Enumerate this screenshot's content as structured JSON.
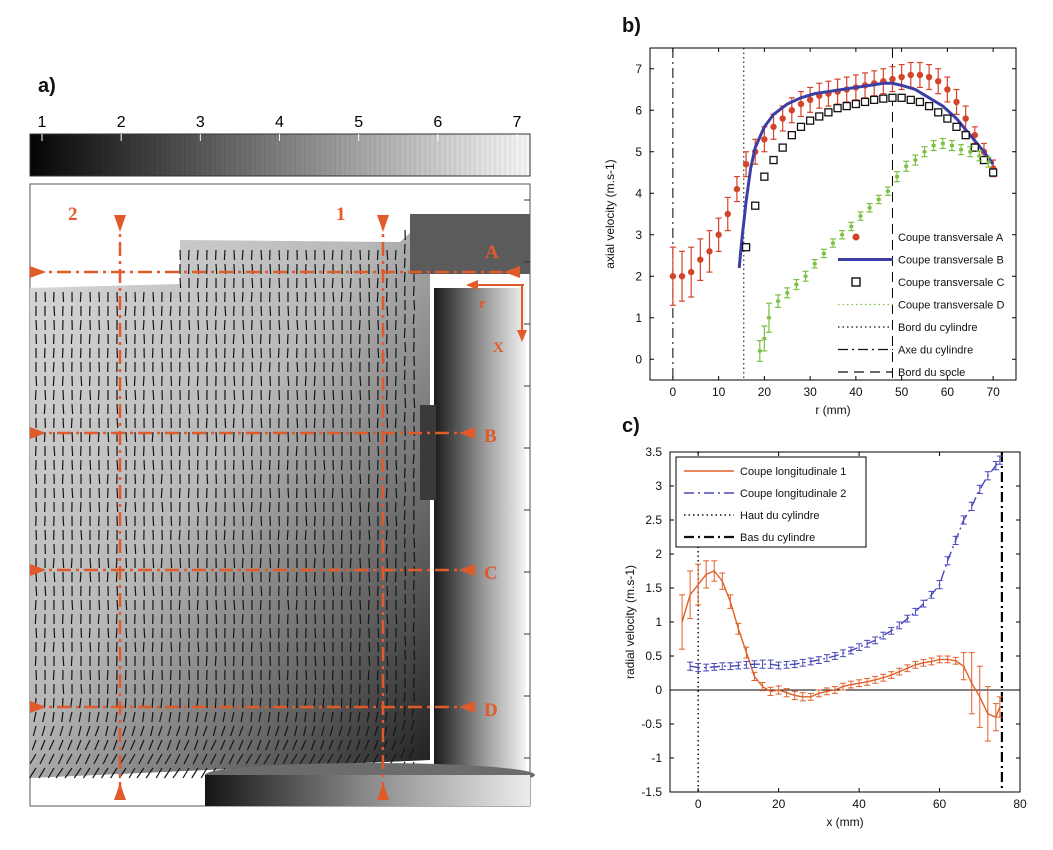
{
  "colors": {
    "accent": "#e05a2a",
    "seriesA": "#d4442a",
    "seriesB": "#3c3ea6",
    "seriesC": "#111111",
    "seriesD": "#7cc042",
    "long1": "#e0602a",
    "long2": "#4848b8"
  },
  "panel_a": {
    "label": "a)",
    "colorbar_ticks": [
      "1",
      "2",
      "3",
      "4",
      "5",
      "6",
      "7"
    ],
    "section_labels": [
      "A",
      "B",
      "C",
      "D"
    ],
    "longitudinal_labels": [
      "2",
      "1"
    ],
    "axis_labels": {
      "r": "r",
      "x": "X"
    }
  },
  "chart_data": [
    {
      "id": "b",
      "panel_label": "b)",
      "type": "scatter",
      "xlabel": "r (mm)",
      "ylabel": "axial velocity (m.s-1)",
      "xlim": [
        -5,
        75
      ],
      "ylim": [
        -0.5,
        7.5
      ],
      "xticks": [
        0,
        10,
        20,
        30,
        40,
        50,
        60,
        70
      ],
      "yticks": [
        0,
        1,
        2,
        3,
        4,
        5,
        6,
        7
      ],
      "legend_position": "bottom-right",
      "vlines": [
        {
          "x": 0,
          "style": "dashdot",
          "name": "Axe du cylindre"
        },
        {
          "x": 15.5,
          "style": "dotted",
          "name": "Bord du cylindre"
        },
        {
          "x": 48,
          "style": "dashed",
          "name": "Bord du socle"
        }
      ],
      "series": [
        {
          "name": "Coupe transversale A",
          "marker": "dot",
          "color": "seriesA",
          "x": [
            0,
            2,
            4,
            6,
            8,
            10,
            12,
            14,
            16,
            18,
            20,
            22,
            24,
            26,
            28,
            30,
            32,
            34,
            36,
            38,
            40,
            42,
            44,
            46,
            48,
            50,
            52,
            54,
            56,
            58,
            60,
            62,
            64,
            66,
            68,
            70
          ],
          "y": [
            2.0,
            2.0,
            2.1,
            2.4,
            2.6,
            3.0,
            3.5,
            4.1,
            4.7,
            5.0,
            5.3,
            5.6,
            5.8,
            6.0,
            6.15,
            6.25,
            6.35,
            6.4,
            6.45,
            6.5,
            6.55,
            6.6,
            6.65,
            6.7,
            6.75,
            6.8,
            6.85,
            6.85,
            6.8,
            6.7,
            6.5,
            6.2,
            5.8,
            5.4,
            5.0,
            4.6
          ],
          "err": [
            0.7,
            0.6,
            0.6,
            0.5,
            0.5,
            0.4,
            0.4,
            0.3,
            0.3,
            0.3,
            0.3,
            0.3,
            0.3,
            0.3,
            0.3,
            0.3,
            0.3,
            0.3,
            0.3,
            0.3,
            0.3,
            0.3,
            0.3,
            0.3,
            0.3,
            0.3,
            0.3,
            0.3,
            0.3,
            0.3,
            0.3,
            0.3,
            0.3,
            0.2,
            0.2,
            0.2
          ]
        },
        {
          "name": "Coupe transversale B",
          "marker": "line",
          "color": "seriesB",
          "x": [
            14.5,
            15,
            16,
            17,
            18,
            20,
            22,
            25,
            28,
            31,
            34,
            37,
            40,
            43,
            46,
            48,
            50,
            53,
            56,
            59,
            62,
            65,
            68,
            70
          ],
          "y": [
            2.2,
            2.8,
            3.8,
            4.6,
            5.1,
            5.6,
            5.9,
            6.15,
            6.3,
            6.4,
            6.45,
            6.5,
            6.55,
            6.6,
            6.65,
            6.65,
            6.6,
            6.5,
            6.3,
            6.1,
            5.8,
            5.4,
            5.0,
            4.7
          ]
        },
        {
          "name": "Coupe transversale C",
          "marker": "square",
          "color": "seriesC",
          "x": [
            16,
            18,
            20,
            22,
            24,
            26,
            28,
            30,
            32,
            34,
            36,
            38,
            40,
            42,
            44,
            46,
            48,
            50,
            52,
            54,
            56,
            58,
            60,
            62,
            64,
            66,
            68,
            70
          ],
          "y": [
            2.7,
            3.7,
            4.4,
            4.8,
            5.1,
            5.4,
            5.6,
            5.75,
            5.85,
            5.95,
            6.05,
            6.1,
            6.15,
            6.2,
            6.25,
            6.28,
            6.3,
            6.3,
            6.25,
            6.2,
            6.1,
            5.95,
            5.8,
            5.6,
            5.4,
            5.1,
            4.8,
            4.5
          ]
        },
        {
          "name": "Coupe transversale D",
          "marker": "errorbar",
          "color": "seriesD",
          "x": [
            19,
            20,
            21,
            23,
            25,
            27,
            29,
            31,
            33,
            35,
            37,
            39,
            41,
            43,
            45,
            47,
            49,
            51,
            53,
            55,
            57,
            59,
            61,
            63,
            65,
            67,
            69
          ],
          "y": [
            0.2,
            0.5,
            1.0,
            1.4,
            1.6,
            1.8,
            2.0,
            2.3,
            2.55,
            2.8,
            3.0,
            3.2,
            3.45,
            3.65,
            3.85,
            4.05,
            4.4,
            4.65,
            4.8,
            5.0,
            5.15,
            5.2,
            5.15,
            5.05,
            5.0,
            4.9,
            4.75
          ],
          "err": [
            0.25,
            0.3,
            0.35,
            0.15,
            0.12,
            0.12,
            0.12,
            0.1,
            0.1,
            0.1,
            0.1,
            0.1,
            0.1,
            0.1,
            0.1,
            0.1,
            0.12,
            0.12,
            0.12,
            0.12,
            0.12,
            0.12,
            0.12,
            0.12,
            0.12,
            0.12,
            0.12
          ]
        }
      ],
      "legend": [
        {
          "label": "Coupe transversale A",
          "kind": "dot",
          "color": "seriesA"
        },
        {
          "label": "Coupe transversale B",
          "kind": "line",
          "color": "seriesB"
        },
        {
          "label": "Coupe transversale C",
          "kind": "square",
          "color": "seriesC"
        },
        {
          "label": "Coupe transversale D",
          "kind": "dotted",
          "color": "seriesD"
        },
        {
          "label": "Bord du cylindre",
          "kind": "dotted",
          "color": "seriesC"
        },
        {
          "label": "Axe du cylindre",
          "kind": "dashdot",
          "color": "seriesC"
        },
        {
          "label": "Bord du socle",
          "kind": "dashed",
          "color": "seriesC"
        }
      ]
    },
    {
      "id": "c",
      "panel_label": "c)",
      "type": "line",
      "xlabel": "x (mm)",
      "ylabel": "radial velocity (m.s-1)",
      "xlim": [
        -7,
        80
      ],
      "ylim": [
        -1.5,
        3.5
      ],
      "xticks": [
        0,
        20,
        40,
        60,
        80
      ],
      "yticks": [
        -1.5,
        -1,
        -0.5,
        0,
        0.5,
        1,
        1.5,
        2,
        2.5,
        3,
        3.5
      ],
      "ytick_labels": [
        "-1.5",
        "-1",
        "-0.5",
        "0",
        "0.5",
        "1",
        "1.5",
        "2",
        "2.5",
        "3",
        "3.5"
      ],
      "legend_position": "top-left",
      "hline": 0,
      "vlines": [
        {
          "x": 0,
          "style": "dotted",
          "name": "Haut du cylindre"
        },
        {
          "x": 75.5,
          "style": "dashdot-bold",
          "name": "Bas du cylindre"
        }
      ],
      "series": [
        {
          "name": "Coupe longitudinale 1",
          "color": "long1",
          "style": "solid",
          "x": [
            -4,
            -2,
            0,
            2,
            4,
            6,
            8,
            10,
            12,
            14,
            16,
            18,
            20,
            22,
            24,
            26,
            28,
            30,
            32,
            34,
            36,
            38,
            40,
            42,
            44,
            46,
            48,
            50,
            52,
            54,
            56,
            58,
            60,
            62,
            64,
            66,
            68,
            70,
            72,
            74,
            75
          ],
          "y": [
            1.0,
            1.4,
            1.55,
            1.7,
            1.75,
            1.6,
            1.3,
            0.9,
            0.55,
            0.2,
            0.05,
            -0.02,
            0.0,
            -0.04,
            -0.08,
            -0.1,
            -0.1,
            -0.05,
            -0.02,
            0.0,
            0.05,
            0.08,
            0.1,
            0.12,
            0.15,
            0.18,
            0.22,
            0.27,
            0.32,
            0.37,
            0.4,
            0.42,
            0.45,
            0.45,
            0.43,
            0.35,
            0.1,
            -0.1,
            -0.35,
            -0.4,
            -0.25
          ],
          "err": [
            0.4,
            0.35,
            0.3,
            0.2,
            0.15,
            0.12,
            0.1,
            0.08,
            0.08,
            0.06,
            0.06,
            0.06,
            0.06,
            0.06,
            0.06,
            0.06,
            0.05,
            0.05,
            0.05,
            0.05,
            0.05,
            0.05,
            0.05,
            0.05,
            0.05,
            0.05,
            0.05,
            0.05,
            0.05,
            0.05,
            0.05,
            0.05,
            0.05,
            0.05,
            0.05,
            0.2,
            0.45,
            0.45,
            0.4,
            0.2,
            0.15
          ]
        },
        {
          "name": "Coupe longitudinale 2",
          "color": "long2",
          "style": "dashdot",
          "x": [
            -2,
            0,
            2,
            4,
            6,
            8,
            10,
            12,
            14,
            16,
            18,
            20,
            22,
            24,
            26,
            28,
            30,
            32,
            34,
            36,
            38,
            40,
            42,
            44,
            46,
            48,
            50,
            52,
            54,
            56,
            58,
            60,
            62,
            64,
            66,
            68,
            70,
            72,
            74,
            75
          ],
          "y": [
            0.35,
            0.33,
            0.33,
            0.34,
            0.35,
            0.35,
            0.36,
            0.37,
            0.38,
            0.38,
            0.38,
            0.36,
            0.37,
            0.38,
            0.4,
            0.42,
            0.44,
            0.47,
            0.5,
            0.54,
            0.58,
            0.63,
            0.68,
            0.73,
            0.8,
            0.87,
            0.95,
            1.05,
            1.15,
            1.27,
            1.4,
            1.55,
            1.9,
            2.2,
            2.5,
            2.7,
            2.95,
            3.15,
            3.3,
            3.38
          ],
          "err": [
            0.06,
            0.06,
            0.05,
            0.05,
            0.05,
            0.05,
            0.05,
            0.05,
            0.05,
            0.06,
            0.06,
            0.05,
            0.05,
            0.05,
            0.05,
            0.05,
            0.05,
            0.05,
            0.05,
            0.05,
            0.05,
            0.05,
            0.05,
            0.05,
            0.05,
            0.05,
            0.05,
            0.05,
            0.05,
            0.05,
            0.05,
            0.06,
            0.06,
            0.06,
            0.06,
            0.06,
            0.06,
            0.06,
            0.06,
            0.06
          ]
        }
      ],
      "legend": [
        {
          "label": "Coupe longitudinale 1",
          "kind": "line",
          "color": "long1"
        },
        {
          "label": "Coupe longitudinale 2",
          "kind": "dashdot",
          "color": "long2"
        },
        {
          "label": "Haut du cylindre",
          "kind": "dotted",
          "color": "seriesC"
        },
        {
          "label": "Bas du cylindre",
          "kind": "dashdot-bold",
          "color": "seriesC"
        }
      ]
    }
  ]
}
